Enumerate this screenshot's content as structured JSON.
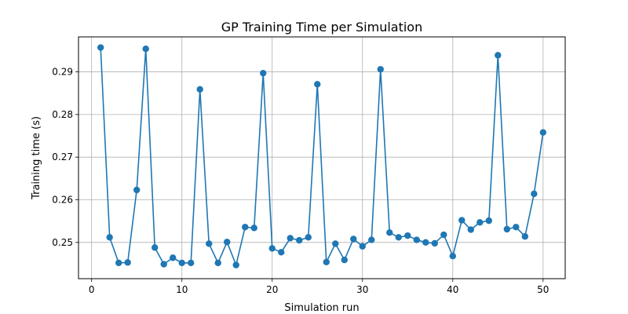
{
  "chart_data": {
    "type": "line",
    "title": "GP Training Time per Simulation",
    "xlabel": "Simulation run",
    "ylabel": "Training time (s)",
    "xlim": [
      -1.45,
      52.45
    ],
    "ylim": [
      0.2415,
      0.2982
    ],
    "xticks": [
      0,
      10,
      20,
      30,
      40,
      50
    ],
    "yticks": [
      0.25,
      0.26,
      0.27,
      0.28,
      0.29
    ],
    "xtick_labels": [
      "0",
      "10",
      "20",
      "30",
      "40",
      "50"
    ],
    "ytick_labels": [
      "0.25",
      "0.26",
      "0.27",
      "0.28",
      "0.29"
    ],
    "grid": true,
    "legend": "none",
    "colors": {
      "series": "#1f77b4",
      "grid": "#b0b0b0",
      "axes": "#000000"
    },
    "series": [
      {
        "marker": "circle",
        "x": [
          1,
          2,
          3,
          4,
          5,
          6,
          7,
          8,
          9,
          10,
          11,
          12,
          13,
          14,
          15,
          16,
          17,
          18,
          19,
          20,
          21,
          22,
          23,
          24,
          25,
          26,
          27,
          28,
          29,
          30,
          31,
          32,
          33,
          34,
          35,
          36,
          37,
          38,
          39,
          40,
          41,
          42,
          43,
          44,
          45,
          46,
          47,
          48,
          49,
          50
        ],
        "y": [
          0.2957,
          0.2512,
          0.2452,
          0.2453,
          0.2623,
          0.2954,
          0.2488,
          0.2449,
          0.2464,
          0.2452,
          0.2452,
          0.2859,
          0.2497,
          0.2452,
          0.2501,
          0.2447,
          0.2536,
          0.2534,
          0.2897,
          0.2486,
          0.2477,
          0.251,
          0.2505,
          0.2512,
          0.2871,
          0.2454,
          0.2497,
          0.2459,
          0.2508,
          0.2491,
          0.2506,
          0.2906,
          0.2523,
          0.2512,
          0.2516,
          0.2506,
          0.25,
          0.2498,
          0.2518,
          0.2468,
          0.2552,
          0.253,
          0.2547,
          0.2551,
          0.2939,
          0.2531,
          0.2536,
          0.2514,
          0.2614,
          0.2758
        ]
      }
    ]
  }
}
